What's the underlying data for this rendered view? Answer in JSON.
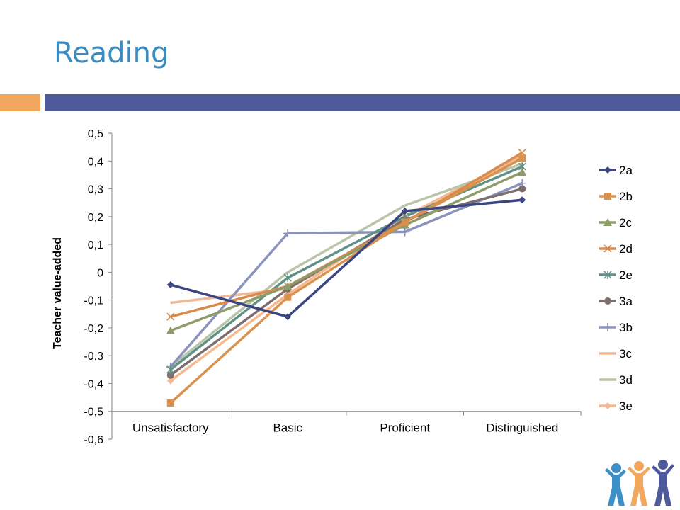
{
  "slide": {
    "title": "Reading"
  },
  "colors": {
    "accent_orange": "#f2a75f",
    "accent_blue": "#4e5a9a",
    "title": "#3a8cc0"
  },
  "chart_data": {
    "type": "line",
    "title": "",
    "xlabel": "",
    "ylabel": "Teacher value-added",
    "categories": [
      "Unsatisfactory",
      "Basic",
      "Proficient",
      "Distinguished"
    ],
    "ylim": [
      -0.6,
      0.5
    ],
    "yticks": [
      0.5,
      0.4,
      0.3,
      0.2,
      0.1,
      0,
      -0.1,
      -0.2,
      -0.3,
      -0.4,
      -0.5,
      -0.6
    ],
    "ytick_labels": [
      "0,5",
      "0,4",
      "0,3",
      "0,2",
      "0,1",
      "0",
      "-0,1",
      "-0,2",
      "-0,3",
      "-0,4",
      "-0,5",
      "-0,6"
    ],
    "legend_position": "right",
    "series": [
      {
        "name": "2a",
        "color": "#3b4582",
        "marker": "diamond",
        "values": [
          -0.045,
          -0.16,
          0.22,
          0.26
        ]
      },
      {
        "name": "2b",
        "color": "#d9924e",
        "marker": "square",
        "values": [
          -0.47,
          -0.09,
          0.18,
          0.41
        ]
      },
      {
        "name": "2c",
        "color": "#8e9c6a",
        "marker": "triangle",
        "values": [
          -0.21,
          -0.05,
          0.17,
          0.36
        ]
      },
      {
        "name": "2d",
        "color": "#d98b4b",
        "marker": "x",
        "values": [
          -0.16,
          -0.05,
          0.18,
          0.43
        ]
      },
      {
        "name": "2e",
        "color": "#5f9186",
        "marker": "star",
        "values": [
          -0.35,
          -0.02,
          0.2,
          0.38
        ]
      },
      {
        "name": "3a",
        "color": "#7d6e6e",
        "marker": "circle",
        "values": [
          -0.37,
          -0.06,
          0.19,
          0.3
        ]
      },
      {
        "name": "3b",
        "color": "#8b93bd",
        "marker": "plus",
        "values": [
          -0.34,
          0.14,
          0.145,
          0.32
        ]
      },
      {
        "name": "3c",
        "color": "#f0b896",
        "marker": "none",
        "values": [
          -0.11,
          -0.06,
          0.18,
          0.42
        ]
      },
      {
        "name": "3d",
        "color": "#b9c4a8",
        "marker": "none",
        "values": [
          -0.34,
          0.0,
          0.24,
          0.39
        ]
      },
      {
        "name": "3e",
        "color": "#f6b98f",
        "marker": "diamond",
        "values": [
          -0.39,
          -0.08,
          0.2,
          0.42
        ]
      }
    ]
  }
}
